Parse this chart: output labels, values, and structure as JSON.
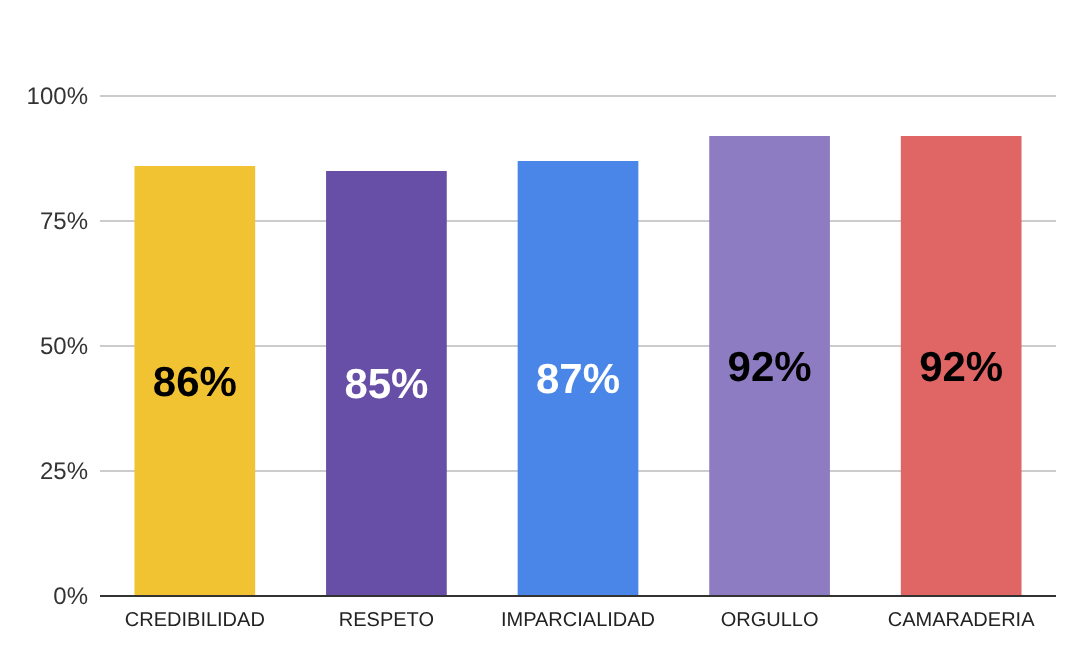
{
  "chart_data": {
    "type": "bar",
    "categories": [
      "CREDIBILIDAD",
      "RESPETO",
      "IMPARCIALIDAD",
      "ORGULLO",
      "CAMARADERIA"
    ],
    "values": [
      86,
      85,
      87,
      92,
      92
    ],
    "colors": [
      "#f1c232",
      "#674ea7",
      "#4a86e8",
      "#8e7cc3",
      "#e06666"
    ],
    "value_labels": [
      "86%",
      "85%",
      "87%",
      "92%",
      "92%"
    ],
    "ylim": [
      0,
      100
    ],
    "yticks": [
      {
        "value": 0,
        "label": "0%"
      },
      {
        "value": 25,
        "label": "25%"
      },
      {
        "value": 50,
        "label": "50%"
      },
      {
        "value": 75,
        "label": "75%"
      },
      {
        "value": 100,
        "label": "100%"
      }
    ],
    "grid": "y"
  }
}
